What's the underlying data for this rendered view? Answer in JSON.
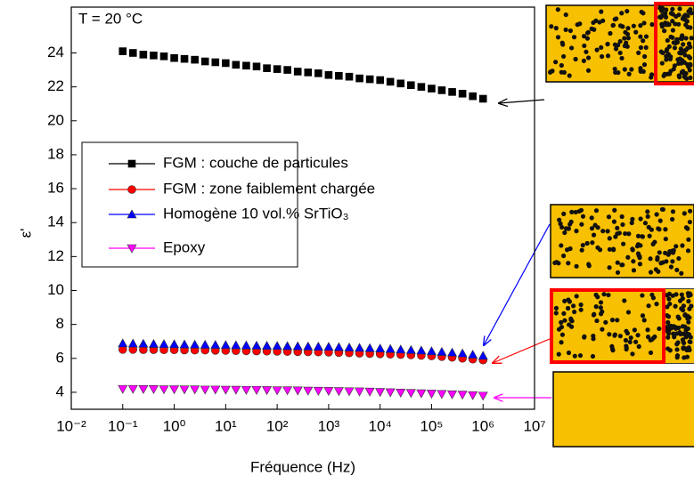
{
  "chart_data": {
    "type": "scatter",
    "annotation": "T = 20 °C",
    "xlabel": "Fréquence (Hz)",
    "ylabel": "ε'",
    "xscale": "log",
    "xlim": [
      0.01,
      10000000
    ],
    "ylim": [
      3,
      26.7
    ],
    "xticks": [
      {
        "value": 0.01,
        "label": "10⁻²"
      },
      {
        "value": 0.1,
        "label": "10⁻¹"
      },
      {
        "value": 1,
        "label": "10⁰"
      },
      {
        "value": 10,
        "label": "10¹"
      },
      {
        "value": 100,
        "label": "10²"
      },
      {
        "value": 1000,
        "label": "10³"
      },
      {
        "value": 10000,
        "label": "10⁴"
      },
      {
        "value": 100000,
        "label": "10⁵"
      },
      {
        "value": 1000000,
        "label": "10⁶"
      },
      {
        "value": 10000000,
        "label": "10⁷"
      }
    ],
    "yticks": [
      4,
      6,
      8,
      10,
      12,
      14,
      16,
      18,
      20,
      22,
      24
    ],
    "x": [
      0.1,
      0.158,
      0.251,
      0.398,
      0.631,
      1,
      1.58,
      2.51,
      3.98,
      6.31,
      10,
      15.8,
      25.1,
      39.8,
      63.1,
      100,
      158,
      251,
      398,
      631,
      1000,
      1580,
      2510,
      3980,
      6310,
      10000,
      15800,
      25100,
      39800,
      63100,
      100000,
      158000,
      251000,
      398000,
      631000,
      1000000
    ],
    "series": [
      {
        "name": "FGM : couche de particules",
        "color": "#000000",
        "marker": "square",
        "values": [
          24.1,
          24.0,
          23.9,
          23.85,
          23.8,
          23.7,
          23.65,
          23.6,
          23.5,
          23.45,
          23.4,
          23.3,
          23.25,
          23.2,
          23.1,
          23.05,
          23.0,
          22.9,
          22.85,
          22.8,
          22.7,
          22.65,
          22.6,
          22.5,
          22.45,
          22.4,
          22.3,
          22.2,
          22.1,
          22.0,
          21.9,
          21.8,
          21.7,
          21.6,
          21.45,
          21.3
        ]
      },
      {
        "name": "FGM : zone faiblement chargée",
        "color": "#ff0000",
        "marker": "circle",
        "values": [
          6.52,
          6.52,
          6.51,
          6.51,
          6.5,
          6.5,
          6.49,
          6.48,
          6.48,
          6.47,
          6.46,
          6.45,
          6.44,
          6.43,
          6.42,
          6.41,
          6.4,
          6.39,
          6.38,
          6.37,
          6.36,
          6.34,
          6.32,
          6.3,
          6.28,
          6.26,
          6.24,
          6.22,
          6.2,
          6.17,
          6.14,
          6.1,
          6.06,
          6.0,
          5.95,
          5.9
        ]
      },
      {
        "name": "Homogène 10 vol.% SrTiO₃",
        "color": "#0000ff",
        "marker": "triangle-up",
        "values": [
          6.88,
          6.87,
          6.86,
          6.85,
          6.84,
          6.83,
          6.82,
          6.81,
          6.8,
          6.79,
          6.78,
          6.77,
          6.76,
          6.75,
          6.74,
          6.73,
          6.72,
          6.71,
          6.7,
          6.69,
          6.68,
          6.66,
          6.64,
          6.62,
          6.6,
          6.58,
          6.55,
          6.52,
          6.49,
          6.46,
          6.42,
          6.38,
          6.34,
          6.29,
          6.22,
          6.15
        ]
      },
      {
        "name": "Epoxy",
        "color": "#ff00ff",
        "marker": "triangle-down",
        "values": [
          4.2,
          4.2,
          4.19,
          4.19,
          4.18,
          4.18,
          4.17,
          4.17,
          4.16,
          4.16,
          4.15,
          4.15,
          4.14,
          4.14,
          4.13,
          4.12,
          4.12,
          4.11,
          4.1,
          4.09,
          4.08,
          4.07,
          4.06,
          4.05,
          4.04,
          4.02,
          4.0,
          3.98,
          3.96,
          3.94,
          3.92,
          3.9,
          3.88,
          3.86,
          3.83,
          3.8
        ]
      }
    ],
    "legend": "upper-left"
  }
}
